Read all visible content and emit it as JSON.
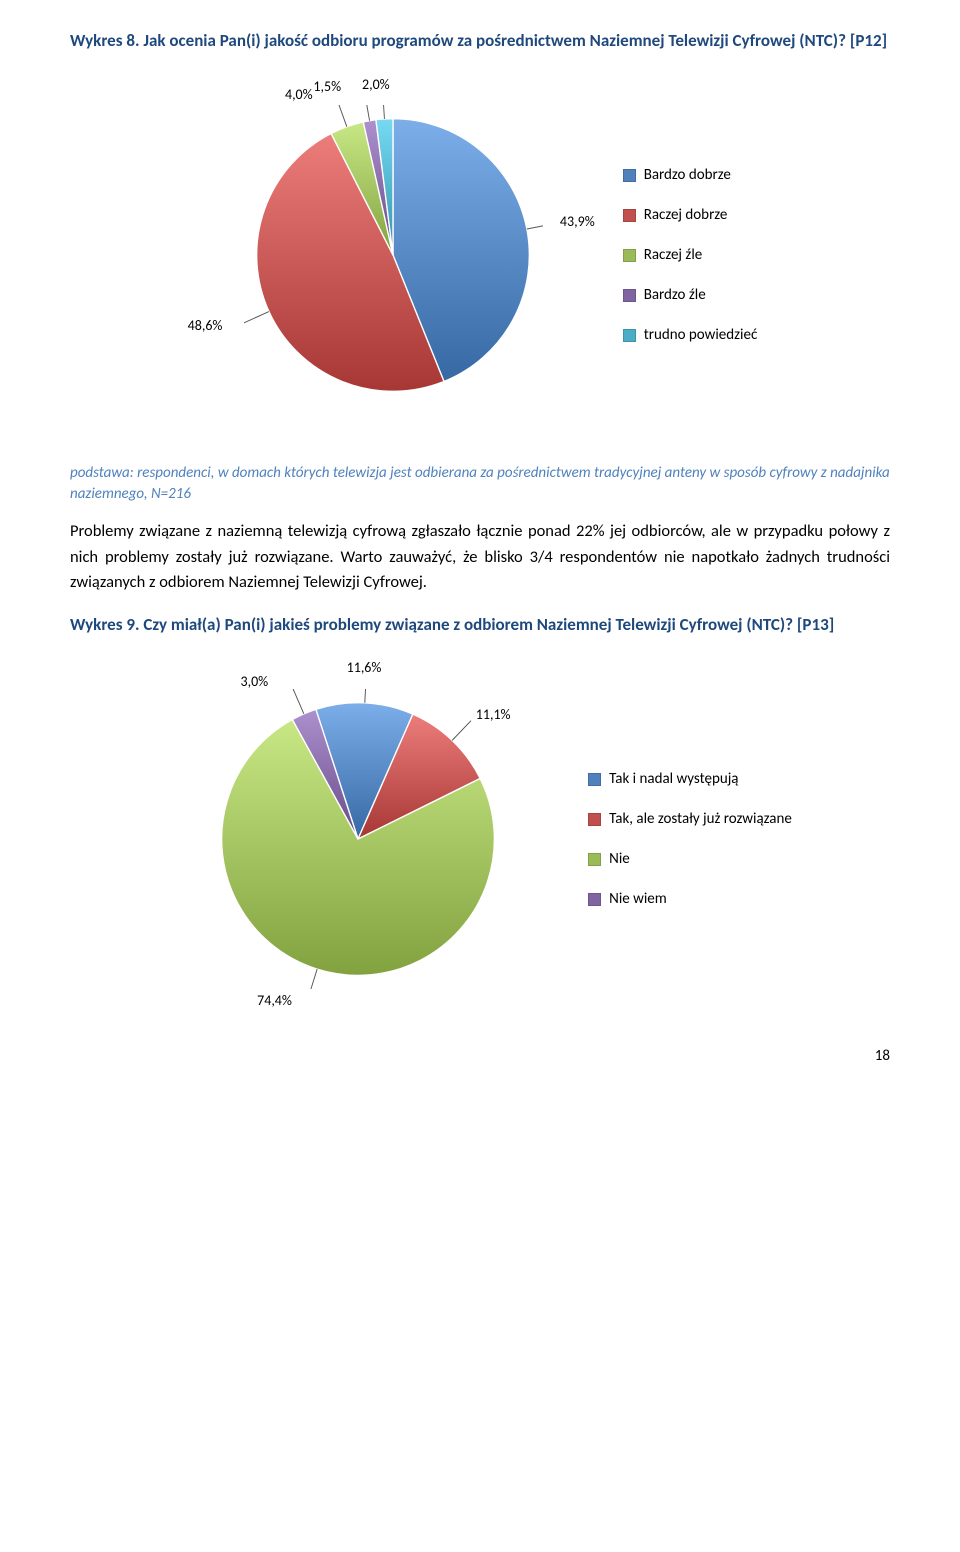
{
  "chart1_title": "Wykres 8. Jak ocenia Pan(i) jakość odbioru programów za pośrednictwem Naziemnej Telewizji Cyfrowej (NTC)? [P12]",
  "chart1": {
    "type": "pie",
    "background_color": "#ffffff",
    "label_fontsize": 14,
    "legend_fontsize": 15,
    "slices": [
      {
        "label": "Bardzo dobrze",
        "value": 43.9,
        "display": "43,9%",
        "color": "#4f81bd"
      },
      {
        "label": "Raczej dobrze",
        "value": 48.6,
        "display": "48,6%",
        "color": "#c0504d"
      },
      {
        "label": "Raczej źle",
        "value": 4.0,
        "display": "4,0%",
        "color": "#9bbb59"
      },
      {
        "label": "Bardzo źle",
        "value": 1.5,
        "display": "1,5%",
        "color": "#8064a2"
      },
      {
        "label": "trudno powiedzieć",
        "value": 2.0,
        "display": "2,0%",
        "color": "#4bacc6"
      }
    ]
  },
  "caption1": "podstawa: respondenci, w domach których telewizja jest odbierana  za pośrednictwem tradycyjnej anteny w sposób cyfrowy z nadajnika naziemnego, N=216",
  "paragraph": "Problemy związane z naziemną telewizją cyfrową zgłaszało łącznie ponad 22% jej odbiorców, ale w przypadku połowy z nich problemy zostały już rozwiązane. Warto zauważyć, że blisko 3/4 respondentów nie napotkało żadnych trudności związanych z odbiorem Naziemnej Telewizji Cyfrowej.",
  "chart2_title": "Wykres 9. Czy miał(a) Pan(i) jakieś problemy związane z odbiorem Naziemnej Telewizji Cyfrowej (NTC)? [P13]",
  "chart2": {
    "type": "pie",
    "background_color": "#ffffff",
    "label_fontsize": 14,
    "legend_fontsize": 15,
    "slices": [
      {
        "label": "Tak i nadal występują",
        "value": 11.6,
        "display": "11,6%",
        "color": "#4f81bd"
      },
      {
        "label": "Tak, ale zostały już rozwiązane",
        "value": 11.1,
        "display": "11,1%",
        "color": "#c0504d"
      },
      {
        "label": "Nie",
        "value": 74.4,
        "display": "74,4%",
        "color": "#9bbb59"
      },
      {
        "label": "Nie wiem",
        "value": 3.0,
        "display": "3,0%",
        "color": "#8064a2"
      }
    ]
  },
  "page_number": "18"
}
